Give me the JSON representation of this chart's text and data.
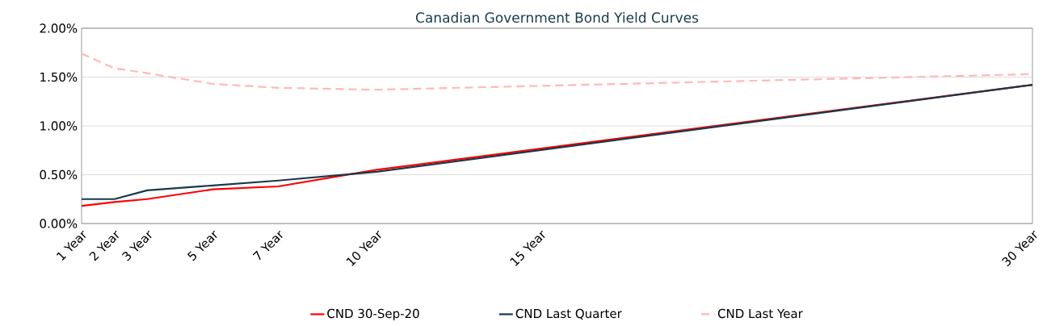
{
  "chart_data": {
    "type": "line",
    "title": "Canadian Government Bond Yield Curves",
    "x": [
      1,
      2,
      3,
      5,
      7,
      10,
      30
    ],
    "xlim": [
      1,
      30
    ],
    "xticks": [
      {
        "value": 1,
        "label": "1 Year"
      },
      {
        "value": 2,
        "label": "2 Year"
      },
      {
        "value": 3,
        "label": "3 Year"
      },
      {
        "value": 5,
        "label": "5 Year"
      },
      {
        "value": 7,
        "label": "7 Year"
      },
      {
        "value": 10,
        "label": "10 Year"
      },
      {
        "value": 15,
        "label": "15 Year"
      },
      {
        "value": 30,
        "label": "30 Year"
      }
    ],
    "ylim": [
      0,
      2
    ],
    "yticks": [
      {
        "value": 0,
        "label": "0.00%"
      },
      {
        "value": 0.5,
        "label": "0.50%"
      },
      {
        "value": 1,
        "label": "1.00%"
      },
      {
        "value": 1.5,
        "label": "1.50%"
      },
      {
        "value": 2,
        "label": "2.00%"
      }
    ],
    "grid": "y",
    "legend": "bottom",
    "marker": "none",
    "series": [
      {
        "name": "CND 30-Sep-20",
        "color": "#ff0000",
        "values": [
          0.18,
          0.22,
          0.25,
          0.35,
          0.38,
          0.55,
          1.42
        ]
      },
      {
        "name": "CND Last Quarter",
        "color": "#17394b",
        "values": [
          0.25,
          0.25,
          0.34,
          0.39,
          0.44,
          0.53,
          1.42
        ]
      },
      {
        "name": "CND Last Year",
        "color": "#ffb8b8",
        "line_style": "dashed",
        "values": [
          1.74,
          1.59,
          1.54,
          1.43,
          1.39,
          1.37,
          1.53
        ]
      }
    ]
  }
}
